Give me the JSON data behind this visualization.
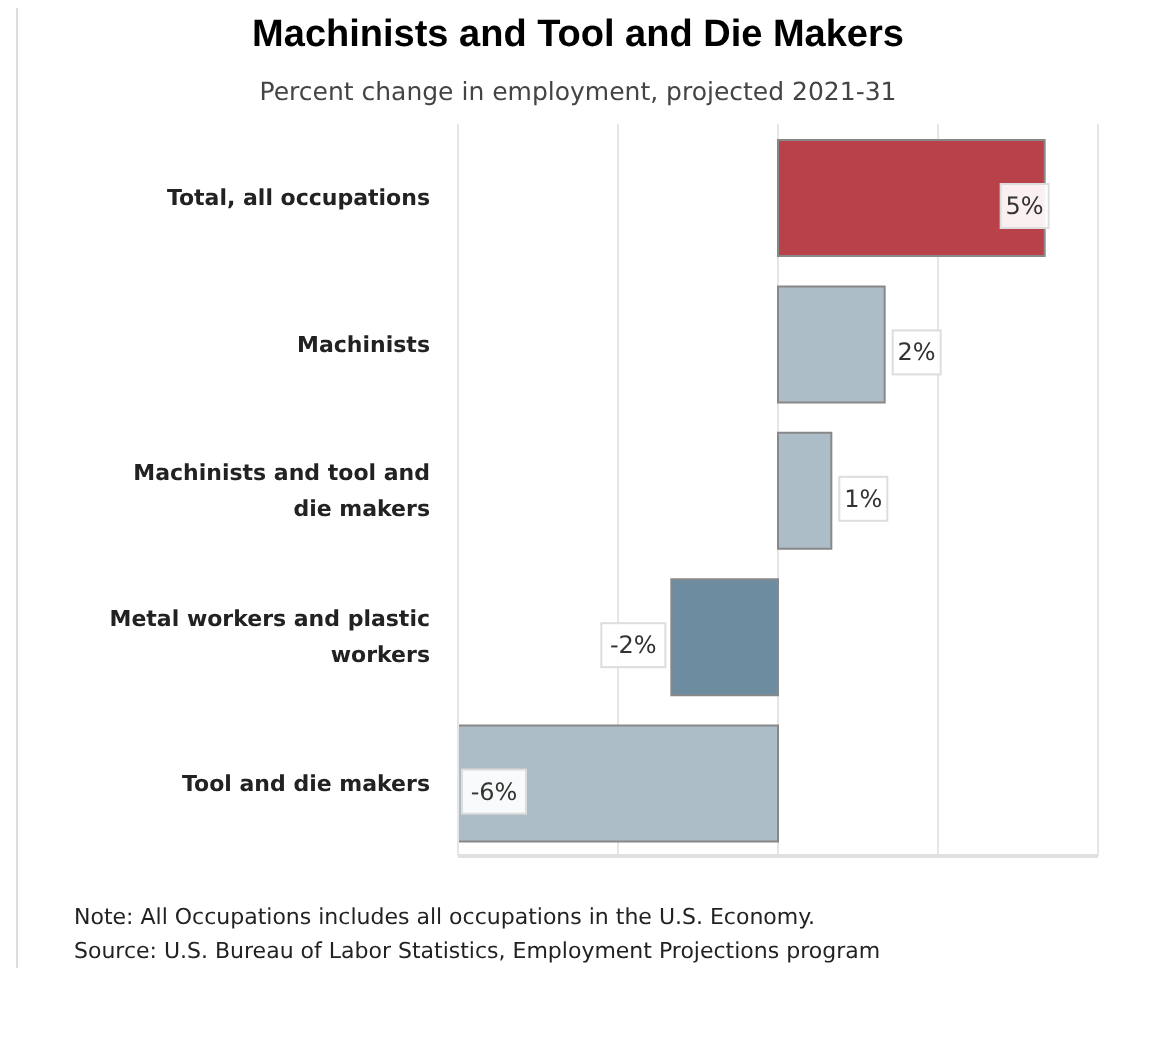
{
  "chart_data": {
    "type": "bar",
    "orientation": "horizontal",
    "title": "Machinists and Tool and Die Makers",
    "subtitle": "Percent change in employment, projected 2021-31",
    "categories": [
      "Total, all occupations",
      "Machinists",
      "Machinists and tool and die makers",
      "Metal workers and plastic workers",
      "Tool and die makers"
    ],
    "values": [
      5,
      2,
      1,
      -2,
      -6
    ],
    "colors": [
      "#b9424a",
      "#adbdc8",
      "#adbdc8",
      "#6e8ca0",
      "#adbdc8"
    ],
    "value_labels": [
      "5%",
      "2%",
      "1%",
      "-2%",
      "-6%"
    ],
    "xlim": [
      -6,
      6
    ],
    "xticks": [
      {
        "value": -6,
        "label": null
      },
      {
        "value": -3,
        "label": null
      },
      {
        "value": 0,
        "label": null
      },
      {
        "value": 3,
        "label": null
      },
      {
        "value": 6,
        "label": null
      }
    ],
    "grid": "x",
    "tick_labels": "y",
    "annotations": [
      "Note: All Occupations includes all occupations in the U.S. Economy.",
      "Source: U.S. Bureau of Labor Statistics, Employment Projections program"
    ]
  }
}
